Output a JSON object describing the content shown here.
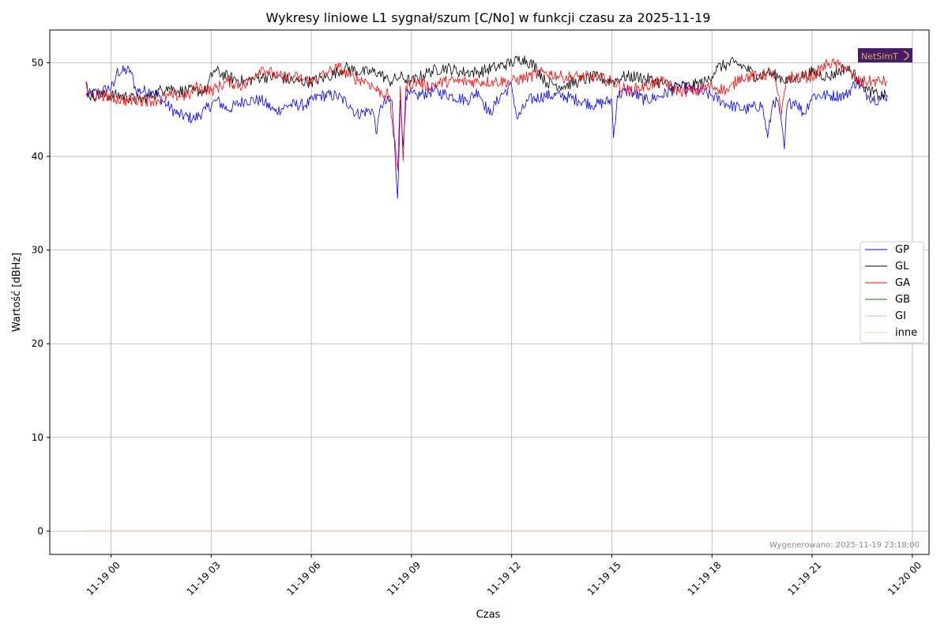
{
  "chart_data": {
    "type": "line",
    "title": "Wykresy liniowe L1 sygnał/szum [C/No] w funkcji czasu za 2025-11-19",
    "xlabel": "Czas",
    "ylabel": "Wartość [dBHz]",
    "x_range": [
      "2025-11-18T22:10",
      "2025-11-20T00:30"
    ],
    "ylim": [
      -2.5,
      53.5
    ],
    "x_ticks": [
      "11-19 00",
      "11-19 03",
      "11-19 06",
      "11-19 09",
      "11-19 12",
      "11-19 15",
      "11-19 18",
      "11-19 21",
      "11-20 00"
    ],
    "y_ticks": [
      "0",
      "10",
      "20",
      "30",
      "40",
      "50"
    ],
    "grid": true,
    "legend_position": "center-right",
    "footnote": "Wygenerowano: 2025-11-19 23:18:00",
    "logo_text": "NetSimT",
    "logo_colors": {
      "background": "#4a1a6b",
      "text": "#c9b840"
    },
    "x_start": "2025-11-18T23:15",
    "x_end": "2025-11-19T23:15",
    "series": [
      {
        "name": "GP",
        "color": "#0000ff",
        "points": [
          [
            "2025-11-18T23:15",
            46.5
          ],
          [
            "2025-11-18T23:45",
            47.0
          ],
          [
            "2025-11-19T00:05",
            47.5
          ],
          [
            "2025-11-19T00:10",
            49.0
          ],
          [
            "2025-11-19T00:35",
            49.2
          ],
          [
            "2025-11-19T00:45",
            47.0
          ],
          [
            "2025-11-19T01:15",
            47.0
          ],
          [
            "2025-11-19T01:40",
            45.5
          ],
          [
            "2025-11-19T02:00",
            44.5
          ],
          [
            "2025-11-19T02:30",
            44.0
          ],
          [
            "2025-11-19T02:50",
            45.0
          ],
          [
            "2025-11-19T03:10",
            46.0
          ],
          [
            "2025-11-19T03:30",
            45.0
          ],
          [
            "2025-11-19T04:00",
            46.0
          ],
          [
            "2025-11-19T04:30",
            46.0
          ],
          [
            "2025-11-19T04:55",
            44.8
          ],
          [
            "2025-11-19T05:20",
            45.5
          ],
          [
            "2025-11-19T05:50",
            45.5
          ],
          [
            "2025-11-19T06:15",
            46.5
          ],
          [
            "2025-11-19T06:45",
            46.5
          ],
          [
            "2025-11-19T07:10",
            45.5
          ],
          [
            "2025-11-19T07:20",
            44.5
          ],
          [
            "2025-11-19T07:50",
            45.0
          ],
          [
            "2025-11-19T07:58",
            42.5
          ],
          [
            "2025-11-19T08:05",
            45.5
          ],
          [
            "2025-11-19T08:25",
            46.0
          ],
          [
            "2025-11-19T08:35",
            35.5
          ],
          [
            "2025-11-19T08:40",
            46.0
          ],
          [
            "2025-11-19T08:45",
            41.0
          ],
          [
            "2025-11-19T08:50",
            46.5
          ],
          [
            "2025-11-19T09:10",
            46.5
          ],
          [
            "2025-11-19T09:40",
            47.0
          ],
          [
            "2025-11-19T10:10",
            46.5
          ],
          [
            "2025-11-19T10:40",
            46.0
          ],
          [
            "2025-11-19T11:00",
            47.0
          ],
          [
            "2025-11-19T11:20",
            44.5
          ],
          [
            "2025-11-19T11:40",
            46.5
          ],
          [
            "2025-11-19T12:00",
            47.5
          ],
          [
            "2025-11-19T12:10",
            44.0
          ],
          [
            "2025-11-19T12:30",
            46.0
          ],
          [
            "2025-11-19T13:00",
            46.5
          ],
          [
            "2025-11-19T13:30",
            46.5
          ],
          [
            "2025-11-19T14:00",
            46.0
          ],
          [
            "2025-11-19T14:30",
            45.5
          ],
          [
            "2025-11-19T15:00",
            46.0
          ],
          [
            "2025-11-19T15:03",
            42.0
          ],
          [
            "2025-11-19T15:10",
            46.5
          ],
          [
            "2025-11-19T15:30",
            47.0
          ],
          [
            "2025-11-19T16:00",
            46.0
          ],
          [
            "2025-11-19T16:30",
            46.5
          ],
          [
            "2025-11-19T17:00",
            47.5
          ],
          [
            "2025-11-19T17:30",
            47.0
          ],
          [
            "2025-11-19T18:00",
            46.5
          ],
          [
            "2025-11-19T18:30",
            45.5
          ],
          [
            "2025-11-19T19:00",
            45.0
          ],
          [
            "2025-11-19T19:30",
            45.5
          ],
          [
            "2025-11-19T19:40",
            42.0
          ],
          [
            "2025-11-19T19:50",
            46.0
          ],
          [
            "2025-11-19T20:00",
            45.5
          ],
          [
            "2025-11-19T20:10",
            40.8
          ],
          [
            "2025-11-19T20:15",
            45.5
          ],
          [
            "2025-11-19T20:30",
            46.0
          ],
          [
            "2025-11-19T20:45",
            44.5
          ],
          [
            "2025-11-19T21:00",
            46.5
          ],
          [
            "2025-11-19T21:30",
            46.5
          ],
          [
            "2025-11-19T22:00",
            46.5
          ],
          [
            "2025-11-19T22:20",
            48.0
          ],
          [
            "2025-11-19T22:40",
            46.5
          ],
          [
            "2025-11-19T23:00",
            46.0
          ],
          [
            "2025-11-19T23:15",
            46.5
          ]
        ]
      },
      {
        "name": "GL",
        "color": "#000000",
        "points": [
          [
            "2025-11-18T23:15",
            48.0
          ],
          [
            "2025-11-18T23:20",
            46.5
          ],
          [
            "2025-11-18T23:50",
            46.5
          ],
          [
            "2025-11-19T00:20",
            46.5
          ],
          [
            "2025-11-19T00:50",
            46.0
          ],
          [
            "2025-11-19T01:15",
            46.5
          ],
          [
            "2025-11-19T01:40",
            47.5
          ],
          [
            "2025-11-19T02:00",
            47.0
          ],
          [
            "2025-11-19T02:30",
            47.0
          ],
          [
            "2025-11-19T02:50",
            47.0
          ],
          [
            "2025-11-19T03:05",
            49.2
          ],
          [
            "2025-11-19T03:30",
            48.5
          ],
          [
            "2025-11-19T04:00",
            48.0
          ],
          [
            "2025-11-19T04:30",
            48.5
          ],
          [
            "2025-11-19T05:00",
            48.5
          ],
          [
            "2025-11-19T05:30",
            48.0
          ],
          [
            "2025-11-19T06:00",
            48.0
          ],
          [
            "2025-11-19T06:30",
            48.5
          ],
          [
            "2025-11-19T07:00",
            49.5
          ],
          [
            "2025-11-19T07:30",
            49.0
          ],
          [
            "2025-11-19T08:00",
            49.0
          ],
          [
            "2025-11-19T08:20",
            48.0
          ],
          [
            "2025-11-19T08:40",
            48.5
          ],
          [
            "2025-11-19T09:00",
            48.0
          ],
          [
            "2025-11-19T09:30",
            49.0
          ],
          [
            "2025-11-19T10:00",
            49.5
          ],
          [
            "2025-11-19T10:30",
            49.0
          ],
          [
            "2025-11-19T11:00",
            49.0
          ],
          [
            "2025-11-19T11:30",
            49.5
          ],
          [
            "2025-11-19T12:00",
            50.0
          ],
          [
            "2025-11-19T12:20",
            50.5
          ],
          [
            "2025-11-19T12:45",
            49.5
          ],
          [
            "2025-11-19T13:00",
            48.0
          ],
          [
            "2025-11-19T13:30",
            47.5
          ],
          [
            "2025-11-19T14:00",
            48.0
          ],
          [
            "2025-11-19T14:30",
            48.5
          ],
          [
            "2025-11-19T15:00",
            48.0
          ],
          [
            "2025-11-19T15:20",
            48.5
          ],
          [
            "2025-11-19T15:50",
            48.5
          ],
          [
            "2025-11-19T16:20",
            48.0
          ],
          [
            "2025-11-19T16:50",
            47.5
          ],
          [
            "2025-11-19T17:20",
            47.5
          ],
          [
            "2025-11-19T17:50",
            48.0
          ],
          [
            "2025-11-19T18:10",
            49.5
          ],
          [
            "2025-11-19T18:40",
            50.0
          ],
          [
            "2025-11-19T19:00",
            49.5
          ],
          [
            "2025-11-19T19:20",
            48.5
          ],
          [
            "2025-11-19T19:40",
            49.0
          ],
          [
            "2025-11-19T20:00",
            48.5
          ],
          [
            "2025-11-19T20:20",
            48.0
          ],
          [
            "2025-11-19T20:40",
            48.5
          ],
          [
            "2025-11-19T21:00",
            49.0
          ],
          [
            "2025-11-19T21:30",
            48.5
          ],
          [
            "2025-11-19T22:00",
            49.5
          ],
          [
            "2025-11-19T22:20",
            48.5
          ],
          [
            "2025-11-19T22:40",
            47.0
          ],
          [
            "2025-11-19T23:00",
            46.5
          ],
          [
            "2025-11-19T23:15",
            46.5
          ]
        ]
      },
      {
        "name": "GA",
        "color": "#ff0000",
        "points": [
          [
            "2025-11-18T23:15",
            48.0
          ],
          [
            "2025-11-18T23:20",
            46.5
          ],
          [
            "2025-11-18T23:50",
            46.5
          ],
          [
            "2025-11-19T00:20",
            46.0
          ],
          [
            "2025-11-19T00:50",
            46.0
          ],
          [
            "2025-11-19T01:20",
            46.0
          ],
          [
            "2025-11-19T01:50",
            46.5
          ],
          [
            "2025-11-19T02:20",
            46.5
          ],
          [
            "2025-11-19T02:35",
            47.5
          ],
          [
            "2025-11-19T03:00",
            47.0
          ],
          [
            "2025-11-19T03:30",
            48.0
          ],
          [
            "2025-11-19T04:00",
            47.5
          ],
          [
            "2025-11-19T04:30",
            49.5
          ],
          [
            "2025-11-19T05:00",
            48.5
          ],
          [
            "2025-11-19T05:30",
            48.5
          ],
          [
            "2025-11-19T06:00",
            48.0
          ],
          [
            "2025-11-19T06:30",
            49.0
          ],
          [
            "2025-11-19T06:50",
            49.5
          ],
          [
            "2025-11-19T07:10",
            48.5
          ],
          [
            "2025-11-19T07:40",
            48.0
          ],
          [
            "2025-11-19T08:00",
            47.0
          ],
          [
            "2025-11-19T08:20",
            46.5
          ],
          [
            "2025-11-19T08:35",
            38.5
          ],
          [
            "2025-11-19T08:40",
            47.5
          ],
          [
            "2025-11-19T08:45",
            39.5
          ],
          [
            "2025-11-19T08:50",
            47.5
          ],
          [
            "2025-11-19T09:10",
            48.0
          ],
          [
            "2025-11-19T09:30",
            47.5
          ],
          [
            "2025-11-19T10:00",
            48.0
          ],
          [
            "2025-11-19T10:30",
            48.0
          ],
          [
            "2025-11-19T11:00",
            48.0
          ],
          [
            "2025-11-19T11:30",
            48.0
          ],
          [
            "2025-11-19T12:00",
            48.0
          ],
          [
            "2025-11-19T12:30",
            48.5
          ],
          [
            "2025-11-19T13:00",
            49.0
          ],
          [
            "2025-11-19T13:30",
            48.5
          ],
          [
            "2025-11-19T14:00",
            48.5
          ],
          [
            "2025-11-19T14:30",
            48.5
          ],
          [
            "2025-11-19T15:00",
            48.0
          ],
          [
            "2025-11-19T15:30",
            47.0
          ],
          [
            "2025-11-19T16:00",
            47.5
          ],
          [
            "2025-11-19T16:30",
            48.0
          ],
          [
            "2025-11-19T17:00",
            47.0
          ],
          [
            "2025-11-19T17:30",
            47.0
          ],
          [
            "2025-11-19T18:00",
            47.5
          ],
          [
            "2025-11-19T18:30",
            47.0
          ],
          [
            "2025-11-19T18:50",
            48.5
          ],
          [
            "2025-11-19T19:20",
            48.5
          ],
          [
            "2025-11-19T19:50",
            49.0
          ],
          [
            "2025-11-19T20:05",
            44.5
          ],
          [
            "2025-11-19T20:15",
            48.5
          ],
          [
            "2025-11-19T20:40",
            48.5
          ],
          [
            "2025-11-19T21:00",
            48.5
          ],
          [
            "2025-11-19T21:30",
            50.0
          ],
          [
            "2025-11-19T22:00",
            49.5
          ],
          [
            "2025-11-19T22:20",
            48.0
          ],
          [
            "2025-11-19T22:50",
            48.0
          ],
          [
            "2025-11-19T23:15",
            48.0
          ]
        ]
      },
      {
        "name": "GB",
        "color": "#008000",
        "points": [
          [
            "2025-11-18T23:15",
            0
          ],
          [
            "2025-11-19T23:15",
            0
          ]
        ]
      },
      {
        "name": "GI",
        "color": "#a8c8e8",
        "points": [
          [
            "2025-11-18T23:15",
            0
          ],
          [
            "2025-11-19T23:15",
            0
          ]
        ]
      },
      {
        "name": "inne",
        "color": "#f5c9a0",
        "points": [
          [
            "2025-11-18T23:15",
            0
          ],
          [
            "2025-11-19T23:15",
            0
          ]
        ]
      }
    ]
  }
}
